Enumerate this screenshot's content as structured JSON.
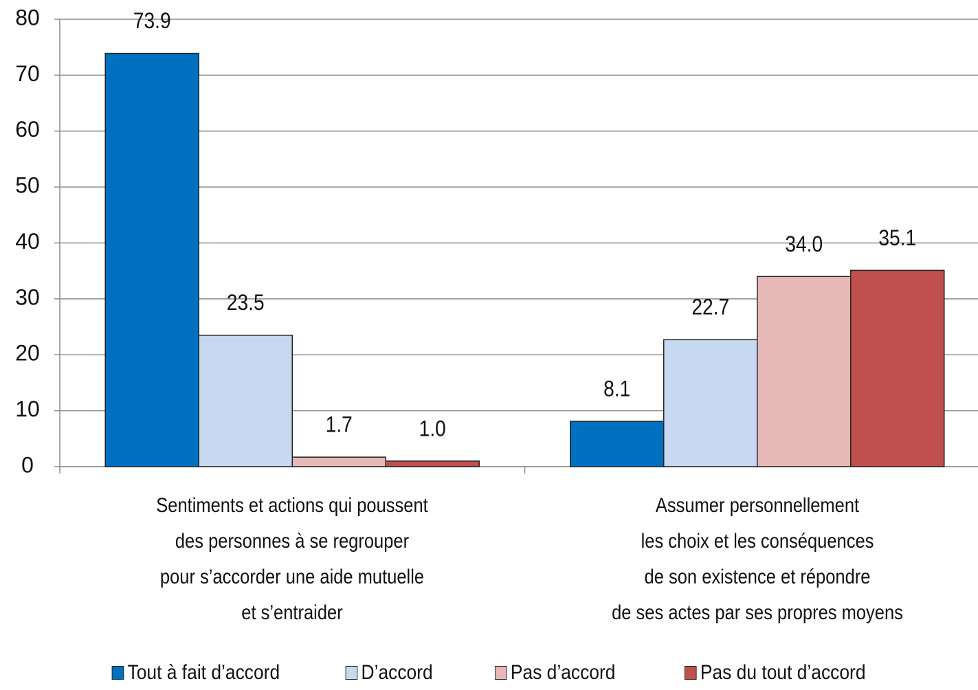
{
  "chart_data": {
    "type": "bar",
    "categories": [
      "Sentiments et actions qui poussent\ndes personnes à se regrouper\npour s’accorder une aide mutuelle\net s’entraider",
      "Assumer personnellement\nles choix et les conséquences\nde son existence et répondre\nde ses actes par ses propres moyens"
    ],
    "series": [
      {
        "name": "Tout à fait d’accord",
        "color": "#0070c0",
        "values": [
          73.9,
          8.1
        ],
        "value_labels": [
          "73.9",
          "8.1"
        ]
      },
      {
        "name": "D’accord",
        "color": "#c6d9f1",
        "values": [
          23.5,
          22.7
        ],
        "value_labels": [
          "23.5",
          "22.7"
        ]
      },
      {
        "name": "Pas d’accord",
        "color": "#e6b9b8",
        "values": [
          1.7,
          34.0
        ],
        "value_labels": [
          "1.7",
          "34.0"
        ]
      },
      {
        "name": "Pas du tout d’accord",
        "color": "#c0504d",
        "values": [
          1.0,
          35.1
        ],
        "value_labels": [
          "1.0",
          "35.1"
        ]
      }
    ],
    "ylim": [
      0,
      80
    ],
    "yticks": [
      0,
      10,
      20,
      30,
      40,
      50,
      60,
      70,
      80
    ],
    "grid": true,
    "legend": "bottom"
  }
}
